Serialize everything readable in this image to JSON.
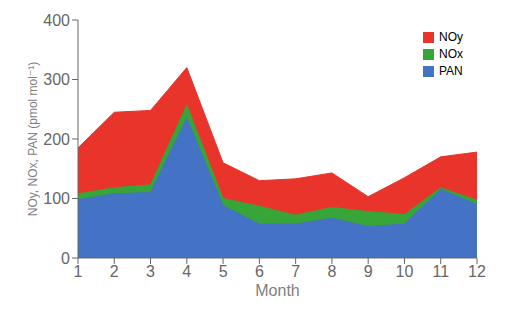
{
  "chart_data": {
    "type": "area",
    "x": [
      1,
      2,
      3,
      4,
      5,
      6,
      7,
      8,
      9,
      10,
      11,
      12
    ],
    "series": [
      {
        "name": "NOy",
        "color": "#e8342a",
        "values": [
          185,
          245,
          248,
          320,
          160,
          130,
          133,
          143,
          103,
          135,
          170,
          178
        ]
      },
      {
        "name": "NOx",
        "color": "#38a538",
        "values": [
          108,
          118,
          123,
          257,
          100,
          87,
          72,
          85,
          78,
          73,
          118,
          97
        ]
      },
      {
        "name": "PAN",
        "color": "#4472c4",
        "values": [
          98,
          108,
          110,
          235,
          88,
          57,
          57,
          67,
          53,
          57,
          115,
          90
        ]
      }
    ],
    "xlabel": "Month",
    "ylabel": "NOy, NOx, PAN (pmol mol⁻¹)",
    "xlim": [
      1,
      12
    ],
    "ylim": [
      0,
      400
    ],
    "xticks": [
      1,
      2,
      3,
      4,
      5,
      6,
      7,
      8,
      9,
      10,
      11,
      12
    ],
    "yticks": [
      0,
      100,
      200,
      300,
      400
    ],
    "legend": "upper right",
    "grid": false
  }
}
